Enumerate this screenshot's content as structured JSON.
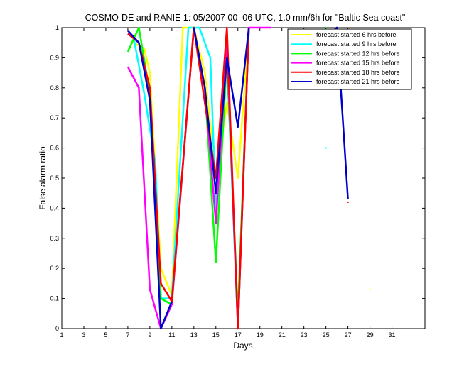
{
  "chart_data": {
    "type": "line",
    "title": "COSMO-DE and RANIE 1: 05/2007 00–06 UTC, 1.0 mm/6h for \"Baltic Sea coast\"",
    "xlabel": "Days",
    "ylabel": "False alarm ratio",
    "xlim": [
      1,
      34
    ],
    "ylim": [
      0,
      1
    ],
    "xticks": [
      1,
      3,
      5,
      7,
      9,
      11,
      13,
      15,
      17,
      19,
      21,
      23,
      25,
      27,
      29,
      31
    ],
    "yticks": [
      0,
      0.1,
      0.2,
      0.3,
      0.4,
      0.5,
      0.6,
      0.7,
      0.8,
      0.9,
      1
    ],
    "legend_position": "top-right",
    "grid": false,
    "series": [
      {
        "name": "forecast started 6 hrs before",
        "color": "#ffff00",
        "segments": [
          [
            [
              7.5,
              0.95
            ],
            [
              8.5,
              0.93
            ],
            [
              9,
              0.85
            ],
            [
              10,
              0.2
            ],
            [
              11,
              0.11
            ],
            [
              12,
              1.0
            ],
            [
              13,
              1.0
            ],
            [
              14,
              0.85
            ],
            [
              15,
              0.5
            ],
            [
              16,
              0.75
            ],
            [
              17,
              0.5
            ],
            [
              18,
              1.0
            ]
          ]
        ],
        "points": [
          [
            29,
            0.13
          ]
        ]
      },
      {
        "name": "forecast started 9 hrs before",
        "color": "#00ffff",
        "segments": [
          [
            [
              7.5,
              0.97
            ],
            [
              8.5,
              0.78
            ],
            [
              9.5,
              0.55
            ],
            [
              10,
              0.1
            ],
            [
              11,
              0.1
            ],
            [
              12.5,
              1.0
            ],
            [
              13.5,
              1.0
            ],
            [
              14.5,
              0.9
            ],
            [
              15,
              0.4
            ],
            [
              16,
              0.9
            ],
            [
              17,
              0.0
            ],
            [
              18,
              1.0
            ]
          ]
        ],
        "points": [
          [
            25,
            0.6
          ],
          [
            27,
            0.81
          ]
        ]
      },
      {
        "name": "forecast started 12 hrs before",
        "color": "#00ff00",
        "segments": [
          [
            [
              7,
              0.92
            ],
            [
              8,
              1.0
            ],
            [
              9,
              0.78
            ],
            [
              10,
              0.1
            ],
            [
              11,
              0.08
            ],
            [
              13,
              1.0
            ],
            [
              14,
              0.8
            ],
            [
              15,
              0.22
            ],
            [
              16,
              0.9
            ],
            [
              17,
              0.05
            ],
            [
              18,
              1.0
            ]
          ]
        ],
        "points": [
          [
            25,
            1.0
          ]
        ]
      },
      {
        "name": "forecast started 15 hrs before",
        "color": "#ff00ff",
        "segments": [
          [
            [
              7,
              0.87
            ],
            [
              8,
              0.8
            ],
            [
              9,
              0.13
            ],
            [
              10,
              0.0
            ],
            [
              11,
              0.08
            ],
            [
              13,
              1.0
            ],
            [
              14,
              0.8
            ],
            [
              15,
              0.35
            ],
            [
              16,
              0.95
            ],
            [
              17,
              0.0
            ],
            [
              18,
              1.0
            ],
            [
              20,
              1.0
            ]
          ]
        ],
        "points": [
          [
            25,
            0.81
          ]
        ]
      },
      {
        "name": "forecast started 18 hrs before",
        "color": "#ff0000",
        "segments": [
          [
            [
              7,
              0.98
            ],
            [
              8,
              0.95
            ],
            [
              9,
              0.8
            ],
            [
              10,
              0.15
            ],
            [
              11,
              0.09
            ],
            [
              13,
              1.0
            ],
            [
              14,
              0.75
            ],
            [
              15,
              0.5
            ],
            [
              16,
              1.0
            ],
            [
              17,
              0.0
            ],
            [
              18,
              1.0
            ]
          ]
        ],
        "points": [
          [
            25,
            0.85
          ],
          [
            27,
            0.42
          ]
        ]
      },
      {
        "name": "forecast started 21 hrs before",
        "color": "#0000cc",
        "segments": [
          [
            [
              7,
              0.99
            ],
            [
              8,
              0.95
            ],
            [
              9,
              0.76
            ],
            [
              10,
              0.0
            ],
            [
              11,
              0.09
            ]
          ],
          [
            [
              13,
              1.0
            ],
            [
              14,
              0.8
            ],
            [
              15,
              0.45
            ],
            [
              16,
              0.9
            ],
            [
              17,
              0.67
            ],
            [
              18,
              1.0
            ]
          ],
          [
            [
              25,
              0.97
            ],
            [
              26,
              1.0
            ],
            [
              27,
              0.43
            ]
          ]
        ],
        "points": []
      }
    ]
  }
}
